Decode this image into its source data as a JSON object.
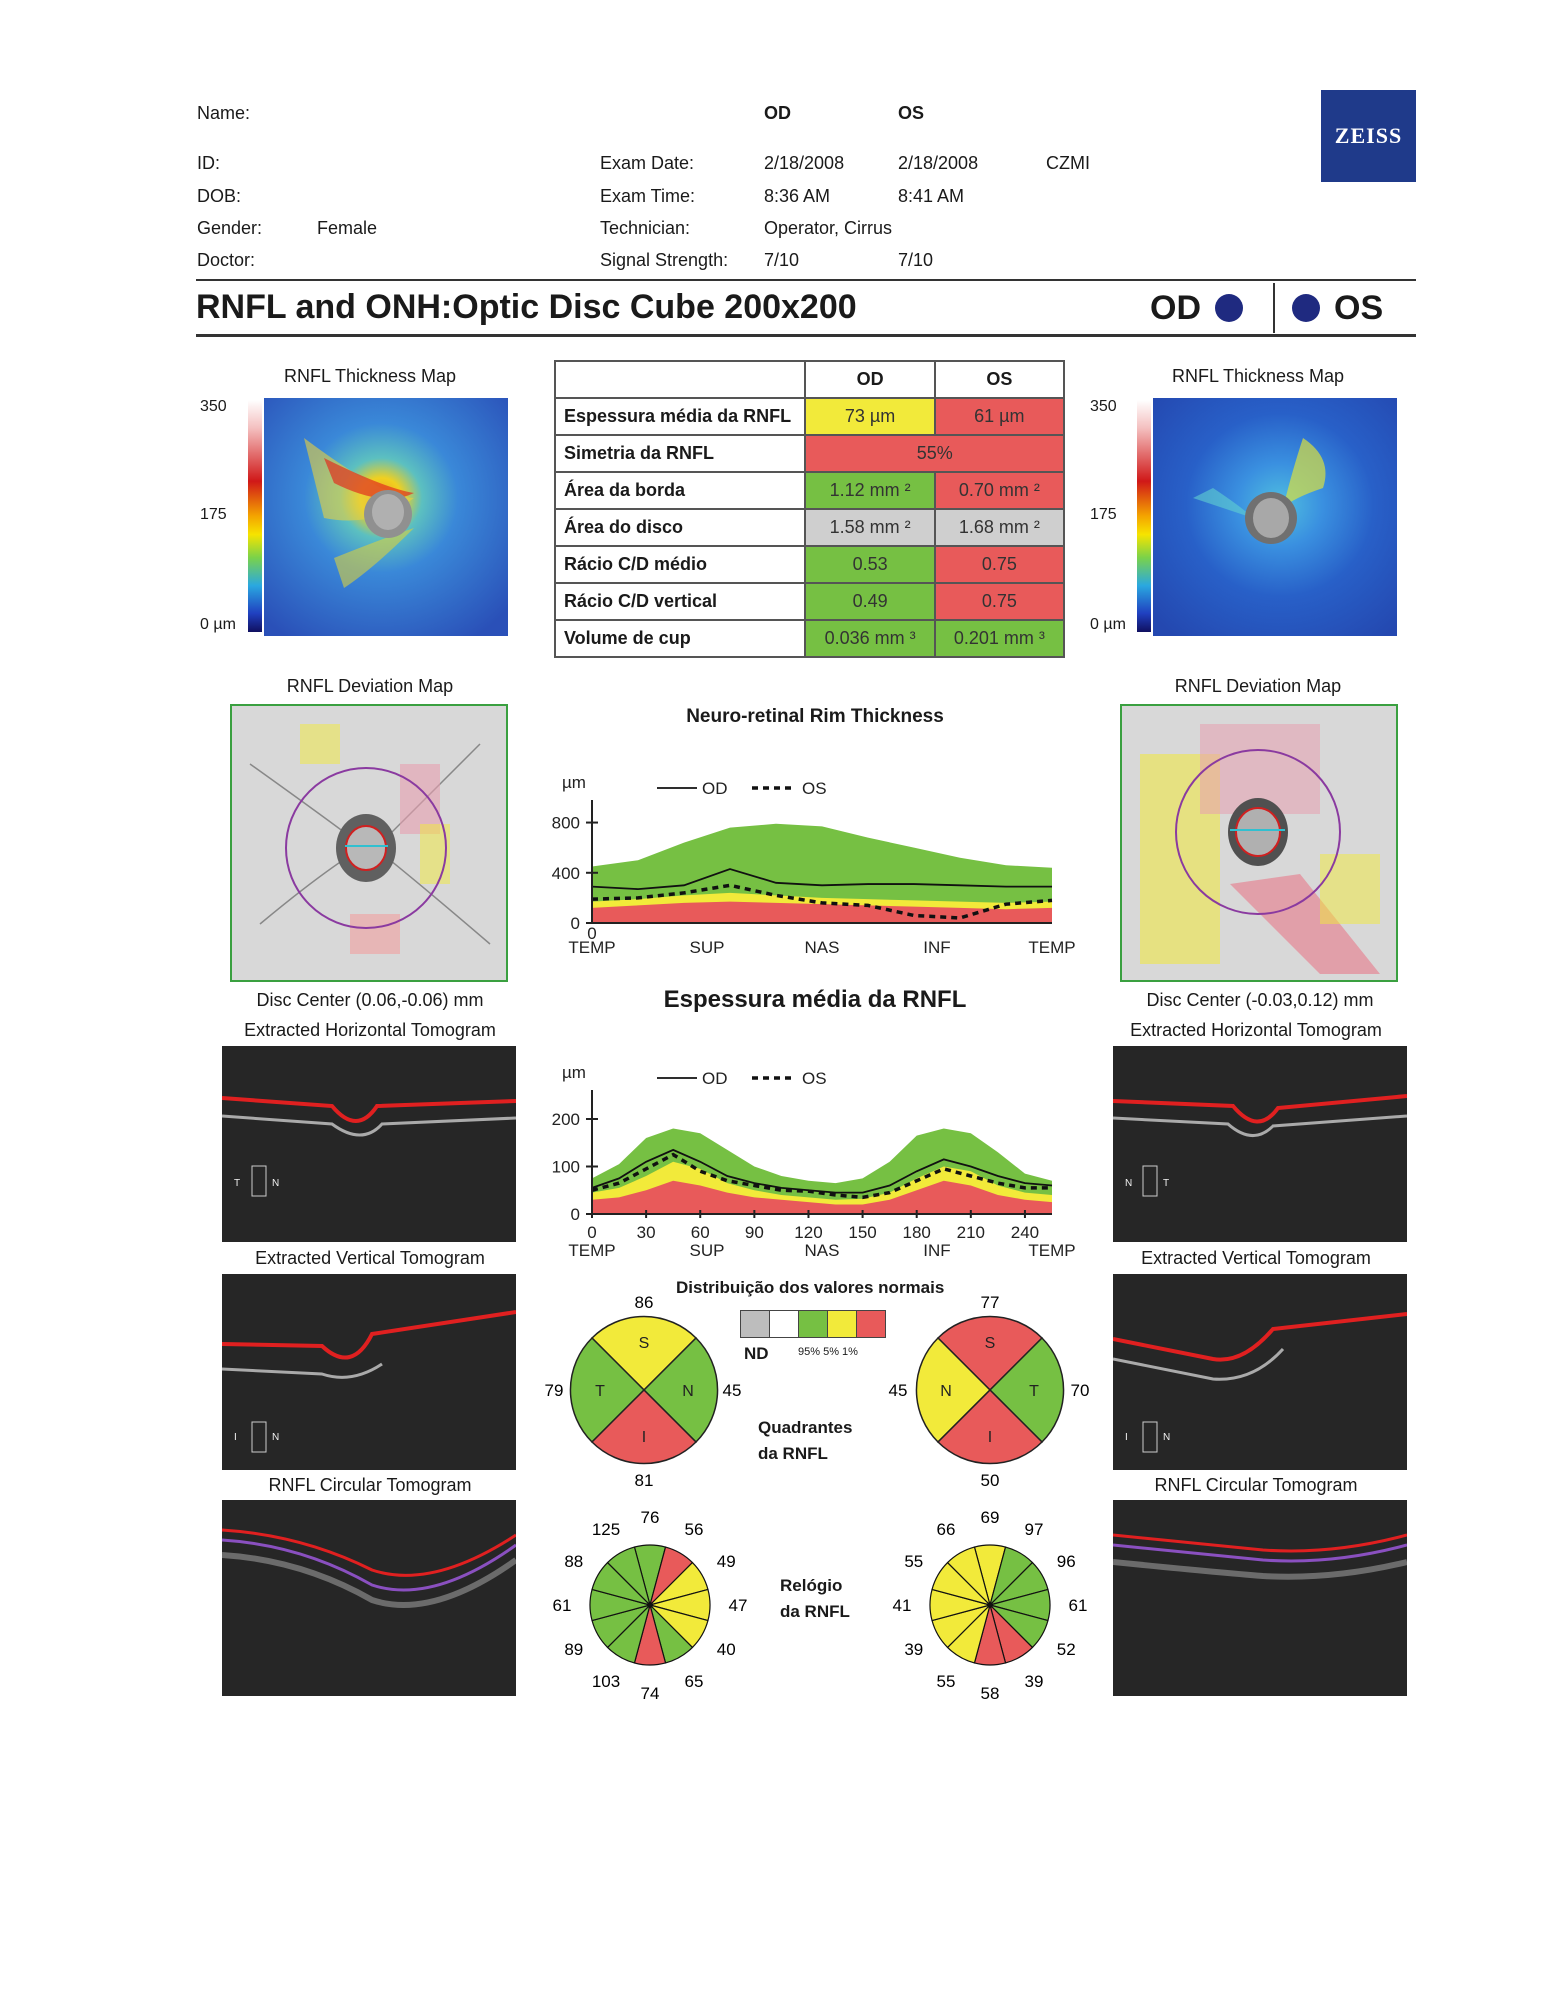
{
  "header": {
    "labels": {
      "name": "Name:",
      "id": "ID:",
      "dob": "DOB:",
      "gender": "Gender:",
      "doctor": "Doctor:"
    },
    "gender_value": "Female",
    "col_od": "OD",
    "col_os": "OS",
    "exam_date_label": "Exam Date:",
    "exam_date_od": "2/18/2008",
    "exam_date_os": "2/18/2008",
    "org": "CZMI",
    "exam_time_label": "Exam Time:",
    "exam_time_od": "8:36 AM",
    "exam_time_os": "8:41 AM",
    "technician_label": "Technician:",
    "technician_value": "Operator, Cirrus",
    "signal_label": "Signal Strength:",
    "signal_od": "7/10",
    "signal_os": "7/10",
    "logo_text": "ZEISS"
  },
  "report": {
    "title": "RNFL and ONH:Optic Disc Cube 200x200",
    "eye_od": "OD",
    "eye_os": "OS"
  },
  "thickness_map": {
    "title": "RNFL Thickness Map",
    "scale_max": "350",
    "scale_mid": "175",
    "scale_min": "0 µm"
  },
  "metrics_table": {
    "col_od": "OD",
    "col_os": "OS",
    "rows": [
      {
        "label": "Espessura média da RNFL",
        "od": "73 µm",
        "os": "61 µm",
        "od_color": "#f2ea3a",
        "os_color": "#e85a5a"
      },
      {
        "label": "Simetria da RNFL",
        "both": "55%",
        "color": "#e85a5a"
      },
      {
        "label": "Área da borda",
        "od": "1.12 mm ²",
        "os": "0.70 mm ²",
        "od_color": "#76c043",
        "os_color": "#e85a5a"
      },
      {
        "label": "Área do disco",
        "od": "1.58 mm ²",
        "os": "1.68 mm ²",
        "od_color": "#cfcfcf",
        "os_color": "#cfcfcf"
      },
      {
        "label": "Rácio C/D médio",
        "od": "0.53",
        "os": "0.75",
        "od_color": "#76c043",
        "os_color": "#e85a5a"
      },
      {
        "label": "Rácio C/D vertical",
        "od": "0.49",
        "os": "0.75",
        "od_color": "#76c043",
        "os_color": "#e85a5a"
      },
      {
        "label": "Volume de cup",
        "od": "0.036 mm ³",
        "os": "0.201 mm ³",
        "od_color": "#76c043",
        "os_color": "#76c043"
      }
    ]
  },
  "deviation_map": {
    "title": "RNFL Deviation Map",
    "od_center": "Disc Center  (0.06,-0.06) mm",
    "os_center": "Disc Center  (-0.03,0.12) mm"
  },
  "tomograms": {
    "horizontal": "Extracted Horizontal Tomogram",
    "vertical": "Extracted Vertical Tomogram",
    "circular": "RNFL Circular Tomogram",
    "od_h_marks": [
      "T",
      "N"
    ],
    "os_h_marks": [
      "N",
      "T"
    ],
    "v_marks": [
      "I",
      "N"
    ]
  },
  "chart_data": [
    {
      "type": "area",
      "title": "Neuro-retinal Rim Thickness",
      "ylabel": "µm",
      "legend": [
        "OD",
        "OS"
      ],
      "legend_od": "OD",
      "legend_os": "OS",
      "x_ticks": [
        "TEMP",
        "SUP",
        "NAS",
        "INF",
        "TEMP"
      ],
      "y_ticks": [
        "0",
        "400",
        "800"
      ],
      "x0_label": "0",
      "ylim": [
        0,
        900
      ],
      "x": [
        0,
        0.1,
        0.2,
        0.3,
        0.4,
        0.5,
        0.6,
        0.7,
        0.8,
        0.9,
        1.0
      ],
      "band_red": [
        120,
        140,
        160,
        170,
        160,
        150,
        140,
        130,
        120,
        110,
        120
      ],
      "band_yellow": [
        170,
        190,
        220,
        240,
        220,
        200,
        190,
        180,
        170,
        160,
        170
      ],
      "band_green": [
        450,
        500,
        640,
        760,
        790,
        770,
        680,
        600,
        520,
        460,
        440
      ],
      "series": [
        {
          "name": "OD",
          "values": [
            290,
            270,
            300,
            430,
            320,
            300,
            310,
            310,
            300,
            290,
            290
          ]
        },
        {
          "name": "OS",
          "values": [
            190,
            200,
            240,
            300,
            220,
            160,
            140,
            60,
            40,
            150,
            180
          ]
        }
      ]
    },
    {
      "type": "area",
      "title": "Espessura média da RNFL",
      "ylabel": "µm",
      "legend": [
        "OD",
        "OS"
      ],
      "legend_od": "OD",
      "legend_os": "OS",
      "x_ticks_num": [
        "0",
        "30",
        "60",
        "90",
        "120",
        "150",
        "180",
        "210",
        "240"
      ],
      "x_ticks_lbl": [
        "TEMP",
        "SUP",
        "NAS",
        "INF",
        "TEMP"
      ],
      "y_ticks": [
        "0",
        "100",
        "200"
      ],
      "ylim": [
        0,
        240
      ],
      "x": [
        0,
        15,
        30,
        45,
        60,
        75,
        90,
        105,
        120,
        135,
        150,
        165,
        180,
        195,
        210,
        225,
        240,
        255
      ],
      "band_red": [
        30,
        35,
        50,
        70,
        60,
        45,
        35,
        30,
        25,
        20,
        20,
        30,
        50,
        70,
        60,
        40,
        30,
        25
      ],
      "band_yellow": [
        45,
        55,
        80,
        110,
        95,
        65,
        50,
        40,
        35,
        30,
        32,
        45,
        75,
        100,
        90,
        60,
        45,
        40
      ],
      "band_green": [
        75,
        105,
        160,
        180,
        170,
        135,
        100,
        80,
        70,
        65,
        75,
        110,
        165,
        180,
        170,
        130,
        85,
        70
      ],
      "series": [
        {
          "name": "OD",
          "values": [
            55,
            75,
            110,
            135,
            110,
            80,
            65,
            55,
            50,
            45,
            45,
            60,
            90,
            115,
            100,
            80,
            65,
            60
          ]
        },
        {
          "name": "OS",
          "values": [
            50,
            65,
            95,
            125,
            90,
            70,
            60,
            50,
            48,
            40,
            35,
            45,
            70,
            95,
            80,
            65,
            55,
            55
          ]
        }
      ]
    }
  ],
  "legend_normal": {
    "title": "Distribuição dos valores normais",
    "nd": "ND",
    "labels": "95% 5% 1%"
  },
  "quadrants": {
    "label_line1": "Quadrantes",
    "label_line2": "da RNFL",
    "od": {
      "top": "86",
      "left": "79",
      "right": "45",
      "bottom": "81",
      "letters": [
        "S",
        "T",
        "N",
        "I"
      ],
      "colors": {
        "S": "#f2ea3a",
        "T": "#76c043",
        "N": "#76c043",
        "I": "#e85a5a"
      }
    },
    "os": {
      "top": "77",
      "left": "45",
      "right": "70",
      "bottom": "50",
      "letters": [
        "S",
        "N",
        "T",
        "I"
      ],
      "colors": {
        "S": "#e85a5a",
        "N": "#f2ea3a",
        "T": "#76c043",
        "I": "#e85a5a"
      }
    }
  },
  "clock": {
    "label_line1": "Relógio",
    "label_line2": "da RNFL",
    "od": {
      "values": [
        "76",
        "56",
        "49",
        "47",
        "40",
        "65",
        "74",
        "103",
        "89",
        "61",
        "88",
        "125"
      ],
      "colors": [
        "#76c043",
        "#e85a5a",
        "#f2ea3a",
        "#f2ea3a",
        "#f2ea3a",
        "#76c043",
        "#e85a5a",
        "#76c043",
        "#76c043",
        "#76c043",
        "#76c043",
        "#76c043"
      ]
    },
    "os": {
      "values": [
        "69",
        "97",
        "96",
        "61",
        "52",
        "39",
        "58",
        "55",
        "39",
        "41",
        "55",
        "66"
      ],
      "colors": [
        "#f2ea3a",
        "#76c043",
        "#76c043",
        "#76c043",
        "#76c043",
        "#e85a5a",
        "#e85a5a",
        "#f2ea3a",
        "#f2ea3a",
        "#f2ea3a",
        "#f2ea3a",
        "#f2ea3a"
      ]
    }
  },
  "colors": {
    "green": "#76c043",
    "yellow": "#f2ea3a",
    "red": "#e85a5a",
    "eye_dot": "#1f2a80",
    "zeiss": "#1f3a8a"
  }
}
